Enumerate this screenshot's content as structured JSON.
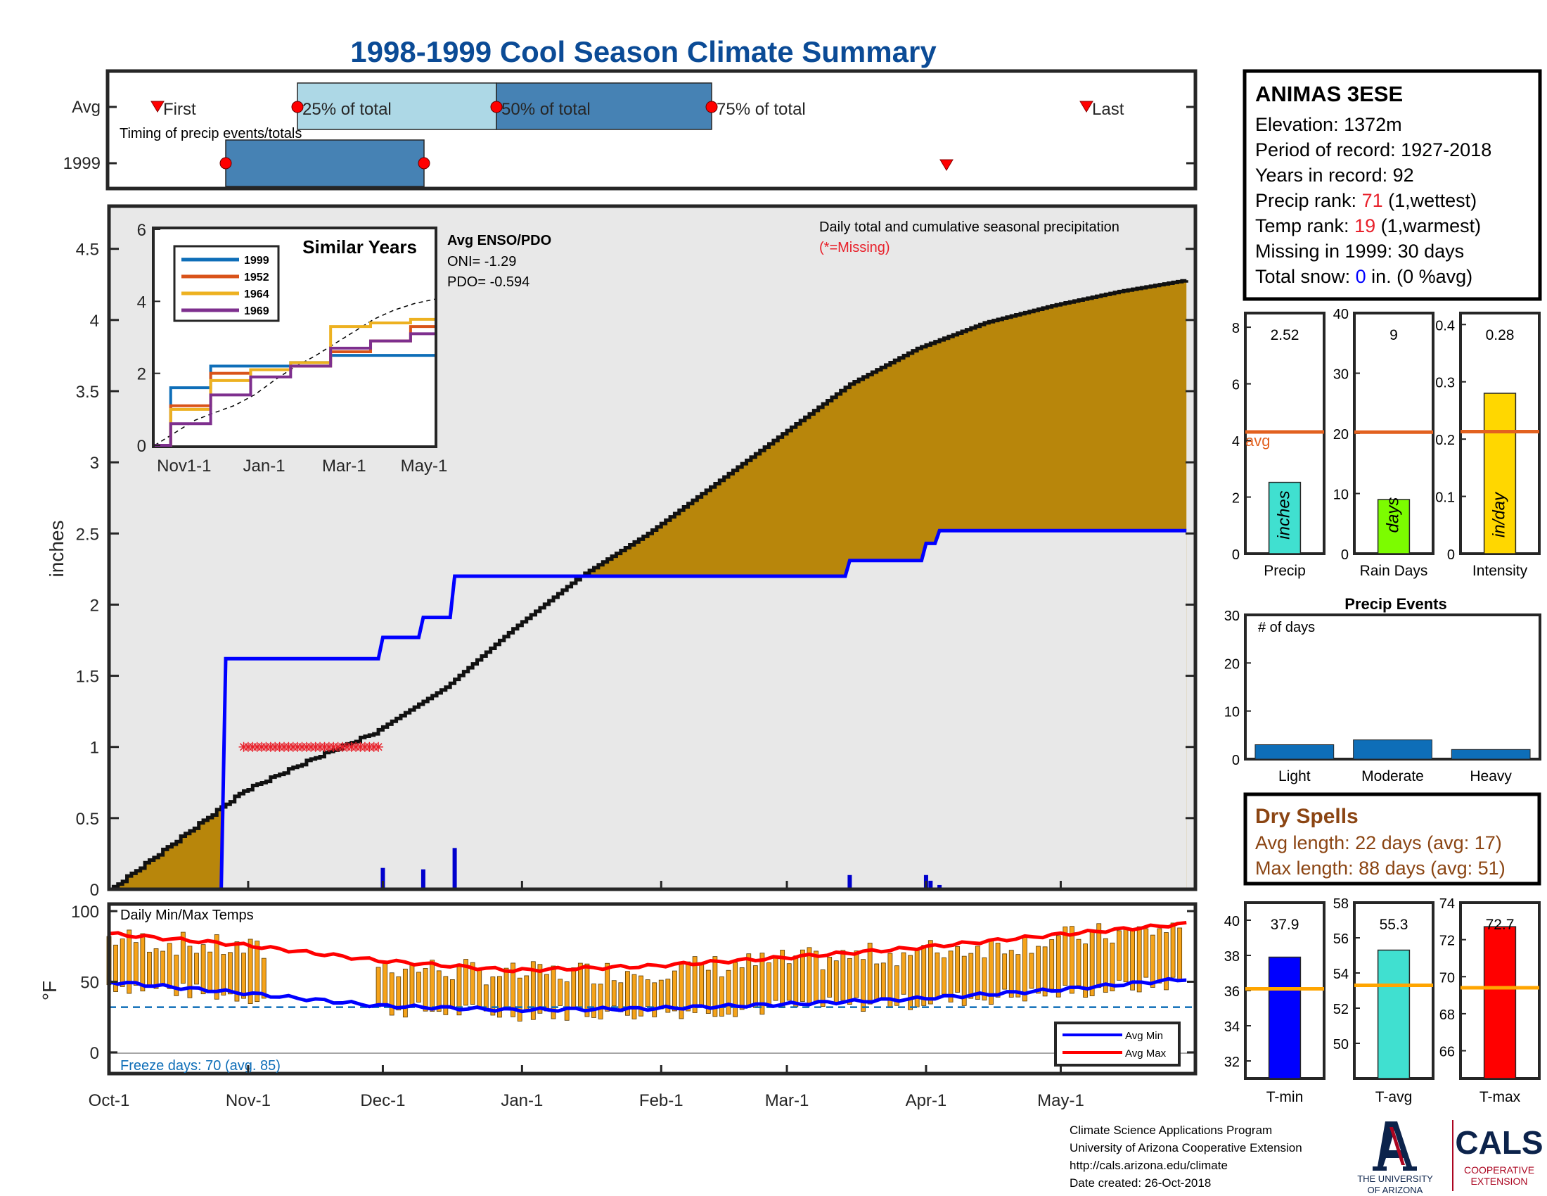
{
  "title": "1998-1999 Cool Season Climate Summary",
  "timing": {
    "rows": [
      "Avg",
      "1999"
    ],
    "caption": "Timing of precip events/totals",
    "labels": [
      "First",
      "25% of total",
      "50% of total",
      "75% of total",
      "Last"
    ]
  },
  "station": {
    "name": "ANIMAS 3ESE",
    "elevation_label": "Elevation: 1372m",
    "period_label": "Period of record: 1927-2018",
    "years_label": "Years in record: 92",
    "precip_rank_prefix": "Precip rank: ",
    "precip_rank": "71",
    "precip_rank_suffix": " (1,wettest)",
    "temp_rank_prefix": "Temp rank: ",
    "temp_rank": "19",
    "temp_rank_suffix": " (1,warmest)",
    "missing_label": "Missing in 1999: 30 days",
    "snow_prefix": "Total snow: ",
    "snow_value": "0",
    "snow_suffix": " in. (0 %avg)"
  },
  "main_chart": {
    "ylabel": "inches",
    "note": "Daily total and cumulative seasonal precipitation",
    "missing_note": "(*=Missing)",
    "enso_title": "Avg ENSO/PDO",
    "oni": "ONI= -1.29",
    "pdo": "PDO= -0.594",
    "yticks": [
      "0",
      "0.5",
      "1",
      "1.5",
      "2",
      "2.5",
      "3",
      "3.5",
      "4",
      "4.5"
    ],
    "xticks": [
      "Oct-1",
      "Nov-1",
      "Dec-1",
      "Jan-1",
      "Feb-1",
      "Mar-1",
      "Apr-1",
      "May-1"
    ]
  },
  "inset": {
    "title": "Similar Years",
    "legend": [
      "1999",
      "1952",
      "1964",
      "1969"
    ],
    "yticks": [
      "0",
      "2",
      "4",
      "6"
    ],
    "xticks": [
      "Nov1-1",
      "Jan-1",
      "Mar-1",
      "May-1"
    ]
  },
  "temp_chart": {
    "ylabel": "°F",
    "title": "Daily Min/Max Temps",
    "freeze_label": "Freeze days: 70 (avg. 85)",
    "legend_min": "Avg Min",
    "legend_max": "Avg Max",
    "yticks": [
      "0",
      "50",
      "100"
    ]
  },
  "bars": {
    "precip": {
      "value": "2.52",
      "unit": "inches",
      "label": "Precip",
      "avg_label": "avg",
      "yticks": [
        "0",
        "2",
        "4",
        "6",
        "8"
      ]
    },
    "raindays": {
      "value": "9",
      "unit": "days",
      "label": "Rain Days",
      "yticks": [
        "0",
        "10",
        "20",
        "30",
        "40"
      ]
    },
    "intensity": {
      "value": "0.28",
      "unit": "in/day",
      "label": "Intensity",
      "yticks": [
        "0",
        "0.1",
        "0.2",
        "0.3",
        "0.4"
      ]
    }
  },
  "events": {
    "title": "Precip Events",
    "note": "# of days",
    "categories": [
      "Light",
      "Moderate",
      "Heavy"
    ],
    "yticks": [
      "0",
      "10",
      "20",
      "30"
    ]
  },
  "dry_spells": {
    "title": "Dry Spells",
    "avg_length": "Avg length: 22 days (avg: 17)",
    "max_length": "Max length: 88 days (avg: 51)"
  },
  "temp_bars": {
    "tmin": {
      "value": "37.9",
      "label": "T-min",
      "yticks": [
        "32",
        "34",
        "36",
        "38",
        "40"
      ]
    },
    "tavg": {
      "value": "55.3",
      "label": "T-avg",
      "yticks": [
        "50",
        "52",
        "54",
        "56",
        "58"
      ]
    },
    "tmax": {
      "value": "72.7",
      "label": "T-max",
      "yticks": [
        "66",
        "68",
        "70",
        "72",
        "74"
      ]
    }
  },
  "footer": {
    "line1": "Climate Science Applications Program",
    "line2": "University of Arizona Cooperative Extension",
    "line3": "http://cals.arizona.edu/climate",
    "line4": " Date created: 26-Oct-2018",
    "ua_line1": "THE UNIVERSITY",
    "ua_line2": "OF ARIZONA",
    "cals": "CALS",
    "cals_sub1": "COOPERATIVE",
    "cals_sub2": "EXTENSION"
  },
  "colors": {
    "title": "#0b4b96",
    "cumulative_fill": "#b8860b",
    "surplus_fill": "#228b22",
    "season_line": "#0000ff",
    "missing": "#e8202a",
    "tmax_line": "#ff0000",
    "tmin_line": "#0000ff",
    "precip_bar": "#40e0d0",
    "raindays_bar": "#7cfc00",
    "intensity_bar": "#ffd700",
    "avg_line": "#e2611f",
    "events_bar": "#0e6eb8"
  },
  "chart_data": [
    {
      "type": "area",
      "title": "Daily total and cumulative seasonal precipitation",
      "ylabel": "inches",
      "ylim": [
        0,
        4.8
      ],
      "series": [
        {
          "name": "Avg cumulative",
          "x": [
            0,
            15,
            30,
            45,
            60,
            75,
            90,
            105,
            120,
            135,
            150,
            165,
            180,
            195,
            210,
            225,
            240
          ],
          "values": [
            0.0,
            0.35,
            0.7,
            0.92,
            1.12,
            1.42,
            1.83,
            2.2,
            2.5,
            2.85,
            3.2,
            3.55,
            3.8,
            3.98,
            4.1,
            4.2,
            4.28
          ]
        },
        {
          "name": "1999 cumulative",
          "x": [
            0,
            25,
            26,
            60,
            61,
            69,
            70,
            76,
            77,
            85,
            86,
            164,
            165,
            181,
            182,
            184,
            185,
            240
          ],
          "values": [
            0.0,
            0.0,
            1.62,
            1.62,
            1.77,
            1.77,
            1.91,
            1.91,
            2.2,
            2.2,
            2.2,
            2.2,
            2.31,
            2.31,
            2.43,
            2.43,
            2.52,
            2.52
          ]
        },
        {
          "name": "Daily precip",
          "x": [
            61,
            70,
            77,
            165,
            182,
            183,
            185
          ],
          "values": [
            0.15,
            0.14,
            0.29,
            0.1,
            0.1,
            0.06,
            0.03
          ]
        }
      ],
      "missing_x_range": [
        30,
        60
      ],
      "xticks": [
        "Oct-1",
        "Nov-1",
        "Dec-1",
        "Jan-1",
        "Feb-1",
        "Mar-1",
        "Apr-1",
        "May-1"
      ]
    },
    {
      "type": "line",
      "title": "Similar Years",
      "ylim": [
        0,
        6
      ],
      "x": [
        0,
        30,
        60,
        90,
        120,
        150,
        180,
        210
      ],
      "series": [
        {
          "name": "1999",
          "values": [
            0,
            1.6,
            2.2,
            2.2,
            2.3,
            2.5,
            2.5,
            2.5
          ]
        },
        {
          "name": "1952",
          "values": [
            0,
            1.1,
            2.0,
            2.1,
            2.2,
            2.6,
            2.9,
            3.3
          ]
        },
        {
          "name": "1964",
          "values": [
            0,
            1.0,
            1.8,
            2.1,
            2.3,
            3.3,
            3.4,
            3.5
          ]
        },
        {
          "name": "1969",
          "values": [
            0,
            0.6,
            1.4,
            1.9,
            2.2,
            2.7,
            2.9,
            3.1
          ]
        }
      ]
    },
    {
      "type": "bar",
      "title": "Daily Min/Max Temps",
      "ylabel": "°F",
      "ylim": [
        -15,
        105
      ],
      "avg_min": {
        "x": [
          0,
          30,
          60,
          90,
          120,
          150,
          180,
          210,
          240
        ],
        "values": [
          50,
          42,
          33,
          30,
          31,
          34,
          38,
          44,
          52
        ]
      },
      "avg_max": {
        "x": [
          0,
          30,
          60,
          90,
          120,
          150,
          180,
          210,
          240
        ],
        "values": [
          84,
          76,
          65,
          58,
          61,
          67,
          74,
          83,
          91
        ]
      },
      "freeze_line": 32
    },
    {
      "type": "bar",
      "categories": [
        "Precip"
      ],
      "values": [
        2.52
      ],
      "avg": 4.3,
      "ylim": [
        0,
        8.5
      ]
    },
    {
      "type": "bar",
      "categories": [
        "Rain Days"
      ],
      "values": [
        9
      ],
      "avg": 20.2,
      "ylim": [
        0,
        40
      ]
    },
    {
      "type": "bar",
      "categories": [
        "Intensity"
      ],
      "values": [
        0.28
      ],
      "avg": 0.213,
      "ylim": [
        0,
        0.42
      ]
    },
    {
      "type": "bar",
      "title": "Precip Events",
      "categories": [
        "Light",
        "Moderate",
        "Heavy"
      ],
      "values": [
        3,
        4,
        2
      ],
      "ylim": [
        0,
        30
      ]
    },
    {
      "type": "bar",
      "categories": [
        "T-min"
      ],
      "values": [
        37.9
      ],
      "avg": 36.1,
      "ylim": [
        31,
        41
      ]
    },
    {
      "type": "bar",
      "categories": [
        "T-avg"
      ],
      "values": [
        55.3
      ],
      "avg": 53.3,
      "ylim": [
        48,
        58
      ]
    },
    {
      "type": "bar",
      "categories": [
        "T-max"
      ],
      "values": [
        72.7
      ],
      "avg": 69.4,
      "ylim": [
        64.5,
        74
      ]
    }
  ]
}
